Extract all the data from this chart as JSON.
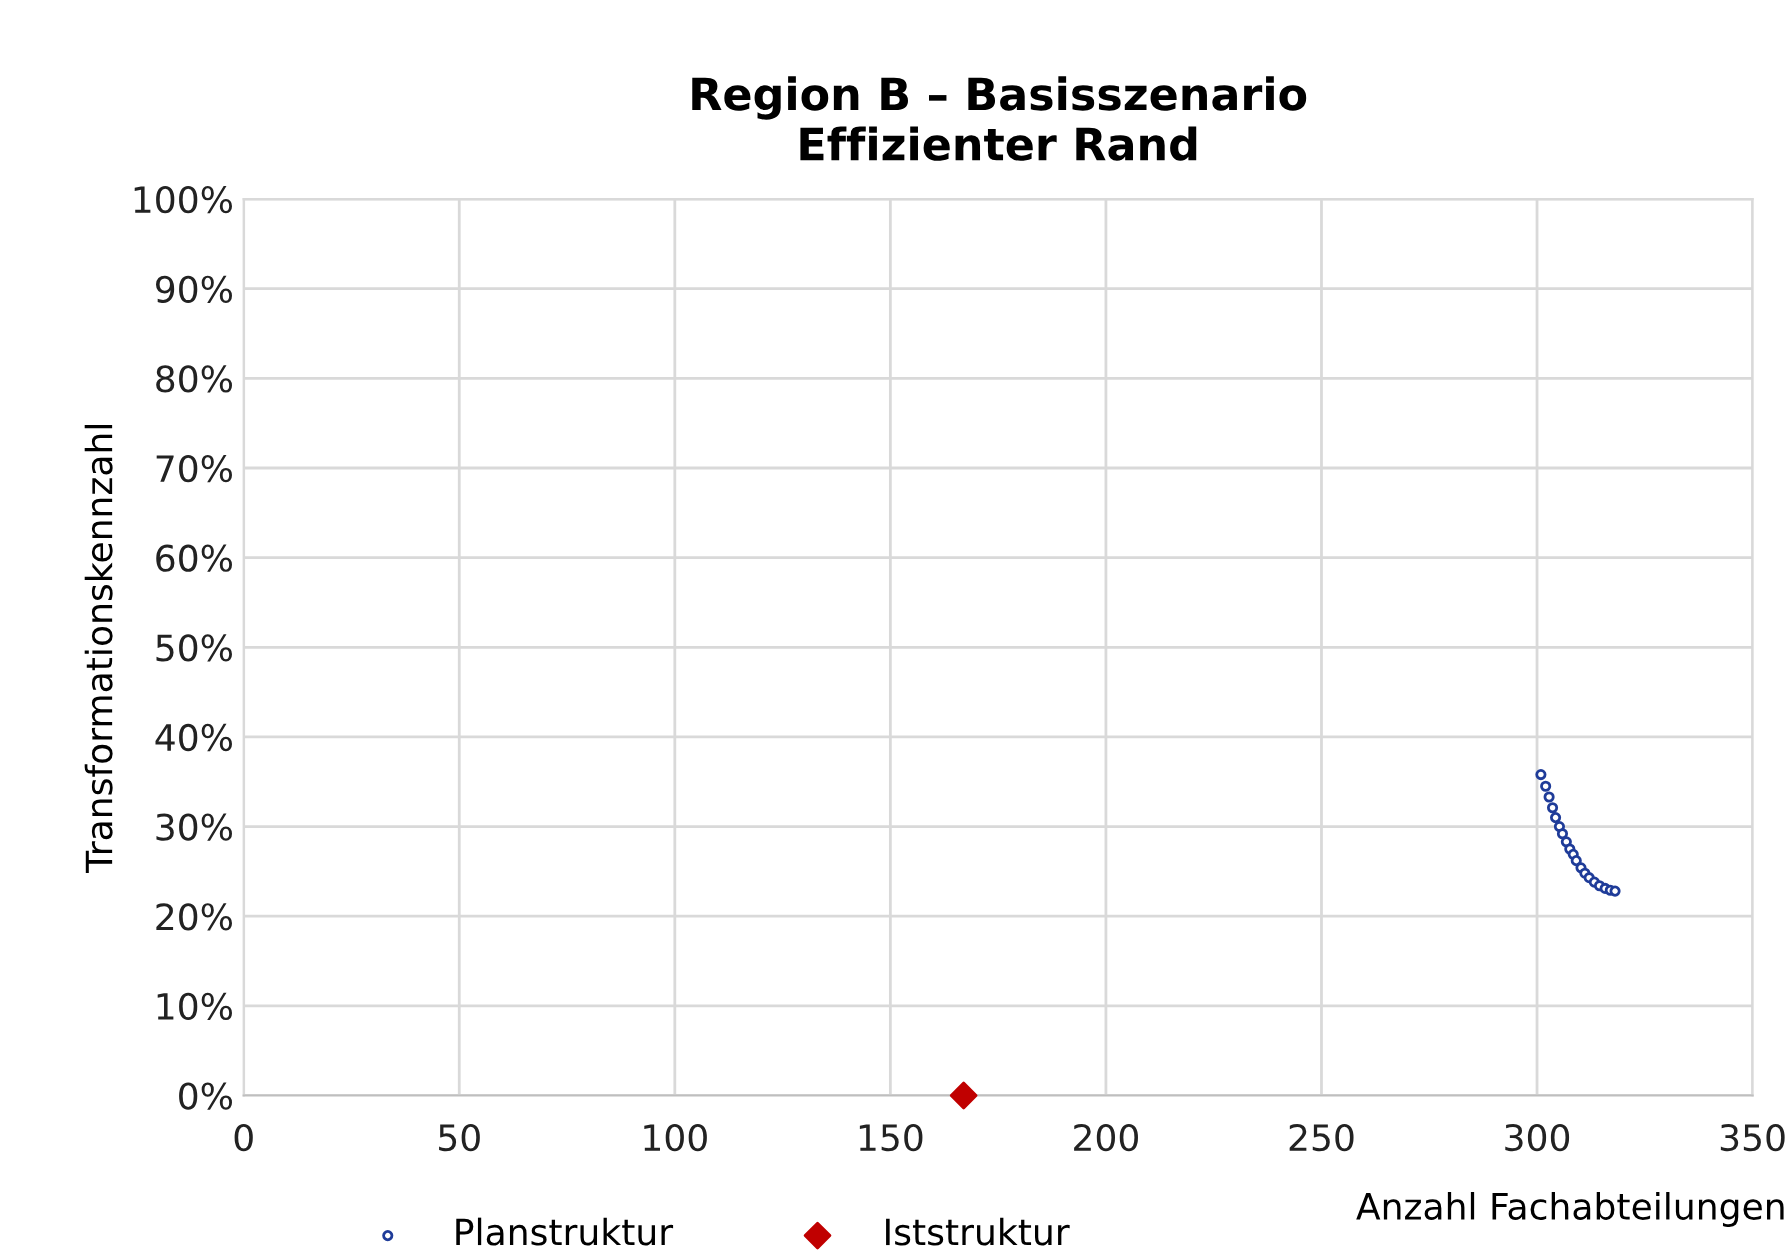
{
  "chart_data": {
    "type": "scatter",
    "title": "Region B – Basisszenario\nEffizienter Rand",
    "xlabel": "Anzahl Fachabteilungen",
    "ylabel": "Transformationskennzahl",
    "series": [
      {
        "name": "Planstruktur",
        "color": "#1f3c99",
        "marker": "circle",
        "x": [
          300.9,
          302.0,
          302.8,
          303.6,
          304.3,
          305.2,
          305.9,
          306.8,
          307.6,
          308.4,
          309.1,
          310.2,
          311.1,
          312.1,
          313.3,
          314.5,
          315.8,
          317.0,
          318.1
        ],
        "values": [
          35.8,
          34.5,
          33.3,
          32.1,
          31.0,
          30.0,
          29.2,
          28.3,
          27.5,
          26.9,
          26.2,
          25.4,
          24.8,
          24.3,
          23.8,
          23.4,
          23.1,
          22.9,
          22.8
        ]
      },
      {
        "name": "Iststruktur",
        "color": "#c00000",
        "marker": "diamond",
        "x": [
          167
        ],
        "values": [
          0
        ]
      }
    ],
    "xlim": [
      0,
      350
    ],
    "xticks": [
      0,
      50,
      100,
      150,
      200,
      250,
      300,
      350
    ],
    "ylim": [
      0,
      100
    ],
    "yticks": [
      {
        "value": 0,
        "label": "0%"
      },
      {
        "value": 10,
        "label": "10%"
      },
      {
        "value": 20,
        "label": "20%"
      },
      {
        "value": 30,
        "label": "30%"
      },
      {
        "value": 40,
        "label": "40%"
      },
      {
        "value": 50,
        "label": "50%"
      },
      {
        "value": 60,
        "label": "60%"
      },
      {
        "value": 70,
        "label": "70%"
      },
      {
        "value": 80,
        "label": "80%"
      },
      {
        "value": 90,
        "label": "90%"
      },
      {
        "value": 100,
        "label": "100%"
      }
    ],
    "grid": true,
    "legend": "bottom"
  }
}
